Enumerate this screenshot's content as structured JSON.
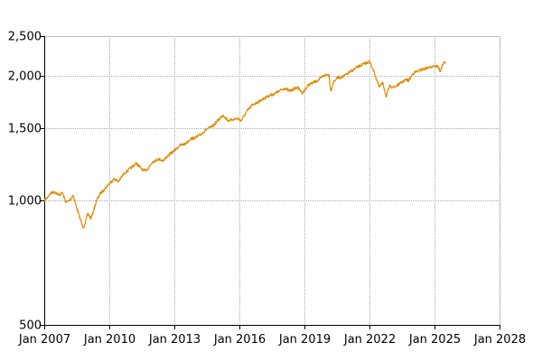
{
  "chart_data": {
    "type": "line",
    "title": "",
    "xlabel": "",
    "ylabel": "",
    "y_scale": "log",
    "ylim": [
      500,
      2500
    ],
    "xlim": [
      "2007-01-01",
      "2028-01-01"
    ],
    "grid": true,
    "legend": "none",
    "line_color": "#e08a00",
    "grid_color": "#a9a9a9",
    "y_ticks": [
      {
        "value": 500,
        "label": "500"
      },
      {
        "value": 1000,
        "label": "1,000"
      },
      {
        "value": 1500,
        "label": "1,500"
      },
      {
        "value": 2000,
        "label": "2,000"
      },
      {
        "value": 2500,
        "label": "2,500"
      }
    ],
    "x_ticks": [
      {
        "value": "2007-01-01",
        "label": "Jan 2007"
      },
      {
        "value": "2010-01-01",
        "label": "Jan 2010"
      },
      {
        "value": "2013-01-01",
        "label": "Jan 2013"
      },
      {
        "value": "2016-01-01",
        "label": "Jan 2016"
      },
      {
        "value": "2019-01-01",
        "label": "Jan 2019"
      },
      {
        "value": "2022-01-01",
        "label": "Jan 2022"
      },
      {
        "value": "2025-01-01",
        "label": "Jan 2025"
      },
      {
        "value": "2028-01-01",
        "label": "Jan 2028"
      }
    ],
    "series": [
      {
        "x": [
          "2007-01-01",
          "2007-03-01",
          "2007-05-01",
          "2007-07-01",
          "2007-09-01",
          "2007-11-01",
          "2008-01-01",
          "2008-03-01",
          "2008-05-01",
          "2008-07-01",
          "2008-09-01",
          "2008-10-15",
          "2008-11-20",
          "2009-01-01",
          "2009-03-01",
          "2009-04-15",
          "2009-06-01",
          "2009-08-01",
          "2009-10-01",
          "2010-01-01",
          "2010-04-01",
          "2010-06-01",
          "2010-09-01",
          "2011-01-01",
          "2011-04-01",
          "2011-08-01",
          "2011-10-01",
          "2012-01-01",
          "2012-04-01",
          "2012-07-01",
          "2012-10-01",
          "2013-01-01",
          "2013-04-01",
          "2013-07-01",
          "2013-10-01",
          "2014-01-01",
          "2014-04-01",
          "2014-07-01",
          "2014-10-01",
          "2015-01-01",
          "2015-04-01",
          "2015-07-01",
          "2015-09-01",
          "2015-12-01",
          "2016-02-01",
          "2016-05-01",
          "2016-08-01",
          "2016-11-01",
          "2017-02-01",
          "2017-05-01",
          "2017-08-01",
          "2017-11-01",
          "2018-02-01",
          "2018-05-01",
          "2018-09-01",
          "2018-12-01",
          "2019-03-01",
          "2019-06-01",
          "2019-09-01",
          "2019-12-01",
          "2020-02-15",
          "2020-03-20",
          "2020-05-01",
          "2020-07-01",
          "2020-10-01",
          "2021-01-01",
          "2021-04-01",
          "2021-07-01",
          "2021-10-01",
          "2021-12-31",
          "2022-03-01",
          "2022-06-15",
          "2022-08-15",
          "2022-10-10",
          "2022-12-01",
          "2023-03-01",
          "2023-06-01",
          "2023-09-01",
          "2023-10-25",
          "2024-01-01",
          "2024-04-01",
          "2024-07-01",
          "2024-10-01",
          "2025-01-01",
          "2025-03-01",
          "2025-04-10",
          "2025-05-15",
          "2025-07-01"
        ],
        "values": [
          1000,
          1020,
          1045,
          1050,
          1030,
          1045,
          990,
          1000,
          1030,
          960,
          900,
          860,
          880,
          930,
          905,
          950,
          1000,
          1040,
          1060,
          1100,
          1130,
          1110,
          1160,
          1200,
          1230,
          1180,
          1190,
          1240,
          1260,
          1250,
          1290,
          1320,
          1360,
          1370,
          1410,
          1420,
          1450,
          1490,
          1510,
          1560,
          1610,
          1560,
          1570,
          1580,
          1560,
          1640,
          1700,
          1730,
          1760,
          1790,
          1810,
          1840,
          1870,
          1840,
          1880,
          1820,
          1900,
          1930,
          1960,
          2010,
          2020,
          1840,
          1930,
          1980,
          1990,
          2030,
          2070,
          2110,
          2140,
          2170,
          2080,
          1880,
          1930,
          1780,
          1890,
          1880,
          1920,
          1960,
          1950,
          2030,
          2060,
          2080,
          2100,
          2120,
          2110,
          2050,
          2130,
          2170
        ]
      }
    ]
  }
}
